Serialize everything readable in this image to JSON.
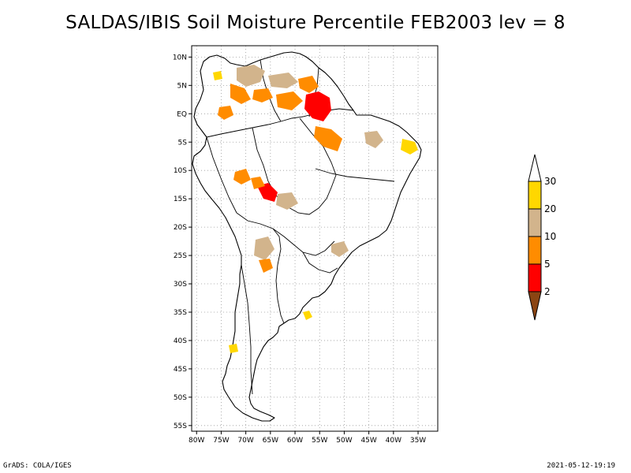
{
  "title": "SALDAS/IBIS Soil Moisture Percentile FEB2003 lev = 8",
  "footer": {
    "left": "GrADS: COLA/IGES",
    "right": "2021-05-12-19:19"
  },
  "map": {
    "region": "South America",
    "lon_range": [
      -81,
      -31
    ],
    "lat_range": [
      -56,
      12
    ],
    "lat_ticks": [
      {
        "value": 10,
        "label": "10N"
      },
      {
        "value": 5,
        "label": "5N"
      },
      {
        "value": 0,
        "label": "EQ"
      },
      {
        "value": -5,
        "label": "5S"
      },
      {
        "value": -10,
        "label": "10S"
      },
      {
        "value": -15,
        "label": "15S"
      },
      {
        "value": -20,
        "label": "20S"
      },
      {
        "value": -25,
        "label": "25S"
      },
      {
        "value": -30,
        "label": "30S"
      },
      {
        "value": -35,
        "label": "35S"
      },
      {
        "value": -40,
        "label": "40S"
      },
      {
        "value": -45,
        "label": "45S"
      },
      {
        "value": -50,
        "label": "50S"
      },
      {
        "value": -55,
        "label": "55S"
      }
    ],
    "lon_ticks": [
      {
        "value": -80,
        "label": "80W"
      },
      {
        "value": -75,
        "label": "75W"
      },
      {
        "value": -70,
        "label": "70W"
      },
      {
        "value": -65,
        "label": "65W"
      },
      {
        "value": -60,
        "label": "60W"
      },
      {
        "value": -55,
        "label": "55W"
      },
      {
        "value": -50,
        "label": "50W"
      },
      {
        "value": -45,
        "label": "45W"
      },
      {
        "value": -40,
        "label": "40W"
      },
      {
        "value": -35,
        "label": "35W"
      }
    ],
    "grid": "dotted"
  },
  "colorbar": {
    "bins": [
      {
        "upper": 2,
        "color": "#8b4513"
      },
      {
        "upper": 5,
        "color": "#ff0000"
      },
      {
        "upper": 10,
        "color": "#ff8c00"
      },
      {
        "upper": 20,
        "color": "#d2b48c"
      },
      {
        "upper": 30,
        "color": "#ffd700"
      },
      {
        "upper": null,
        "color": "#ffffff"
      }
    ],
    "labels": [
      "30",
      "20",
      "10",
      "5",
      "2"
    ]
  },
  "colors": {
    "tan": "#d2b48c",
    "orange": "#ff8c00",
    "red": "#ff0000",
    "gold": "#ffd700",
    "brown": "#8b4513"
  }
}
